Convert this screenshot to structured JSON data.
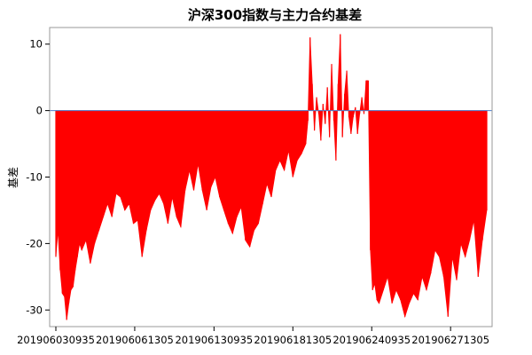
{
  "chart_data": {
    "type": "area",
    "title": "沪深300指数与主力合约基差",
    "xlabel": "",
    "ylabel": "基差",
    "ylim": [
      -32.5,
      12.5
    ],
    "yticks": [
      10,
      0,
      -10,
      -20,
      -30
    ],
    "xlim": [
      0,
      100
    ],
    "xticks": [
      {
        "x": 0,
        "label": "201906030935"
      },
      {
        "x": 18.3,
        "label": "201906061305"
      },
      {
        "x": 36.7,
        "label": "201906130935"
      },
      {
        "x": 55.0,
        "label": "201906181305"
      },
      {
        "x": 73.3,
        "label": "201906240935"
      },
      {
        "x": 91.6,
        "label": "201906271305"
      }
    ],
    "fill_color": "#ff0000",
    "zero_line_color": "#4d7fcf",
    "grid": false,
    "series": [
      {
        "x": [
          0.0,
          0.5,
          1.0,
          1.5,
          2.0,
          2.5,
          3.0,
          3.5,
          4.0,
          4.5,
          5.0,
          5.5,
          6.0,
          7.0,
          8.0,
          9.0,
          10.0,
          11.0,
          12.0,
          13.0,
          14.0,
          15.0,
          16.0,
          17.0,
          18.0,
          19.0,
          20.0,
          21.0,
          22.0,
          23.0,
          24.0,
          25.0,
          26.0,
          27.0,
          28.0,
          29.0,
          30.0,
          31.0,
          32.0,
          33.0,
          34.0,
          35.0,
          36.0,
          37.0,
          38.0,
          39.0,
          40.0,
          41.0,
          42.0,
          43.0,
          44.0,
          45.0,
          46.0,
          47.0,
          48.0,
          49.0,
          50.0,
          51.0,
          52.0,
          53.0,
          54.0,
          55.0,
          56.0,
          57.0,
          58.0,
          58.5,
          59.0,
          59.5,
          60.0,
          60.5,
          61.0,
          61.5,
          62.0,
          62.5,
          63.0,
          63.5,
          64.0,
          64.5,
          65.0,
          65.5,
          66.0,
          66.5,
          67.0,
          67.5,
          68.0,
          68.5,
          69.0,
          69.5,
          70.0,
          70.5,
          71.0,
          71.5,
          72.0,
          72.5,
          73.0,
          73.5,
          74.0,
          74.5,
          75.0,
          76.0,
          77.0,
          78.0,
          79.0,
          80.0,
          81.0,
          82.0,
          83.0,
          84.0,
          85.0,
          86.0,
          87.0,
          88.0,
          89.0,
          90.0,
          91.0,
          92.0,
          93.0,
          94.0,
          95.0,
          96.0,
          97.0,
          98.0,
          99.0,
          100.0
        ],
        "values": [
          -22.0,
          -18.0,
          -24.0,
          -27.5,
          -28.0,
          -31.5,
          -29.0,
          -27.0,
          -26.5,
          -24.0,
          -22.0,
          -20.0,
          -21.0,
          -19.5,
          -23.0,
          -20.0,
          -18.0,
          -16.0,
          -14.0,
          -16.0,
          -12.5,
          -13.0,
          -15.0,
          -14.0,
          -17.0,
          -16.5,
          -22.0,
          -18.0,
          -15.0,
          -13.5,
          -12.5,
          -14.0,
          -17.0,
          -13.0,
          -16.0,
          -17.5,
          -12.0,
          -9.0,
          -12.0,
          -8.0,
          -12.0,
          -15.0,
          -11.5,
          -10.0,
          -13.0,
          -15.0,
          -17.0,
          -18.5,
          -16.0,
          -14.5,
          -19.5,
          -20.5,
          -18.0,
          -17.0,
          -14.0,
          -11.0,
          -13.0,
          -9.0,
          -7.5,
          -9.0,
          -6.0,
          -10.0,
          -7.5,
          -6.5,
          -5.0,
          -1.5,
          11.0,
          4.0,
          -3.0,
          2.0,
          -0.5,
          -4.5,
          1.0,
          -2.0,
          3.5,
          -4.0,
          7.0,
          -1.5,
          -7.5,
          4.0,
          11.5,
          -4.0,
          2.5,
          6.0,
          -1.0,
          -3.5,
          -1.0,
          0.5,
          -3.5,
          -0.5,
          2.0,
          -0.5,
          4.5,
          4.5,
          -21.0,
          -27.0,
          -26.0,
          -28.5,
          -29.0,
          -27.0,
          -25.0,
          -29.0,
          -27.0,
          -28.5,
          -31.0,
          -29.0,
          -27.5,
          -28.5,
          -25.0,
          -27.0,
          -24.5,
          -21.0,
          -22.0,
          -25.0,
          -31.0,
          -22.0,
          -25.5,
          -20.0,
          -22.0,
          -19.5,
          -16.5,
          -25.0,
          -19.5,
          -15.0
        ]
      }
    ]
  }
}
